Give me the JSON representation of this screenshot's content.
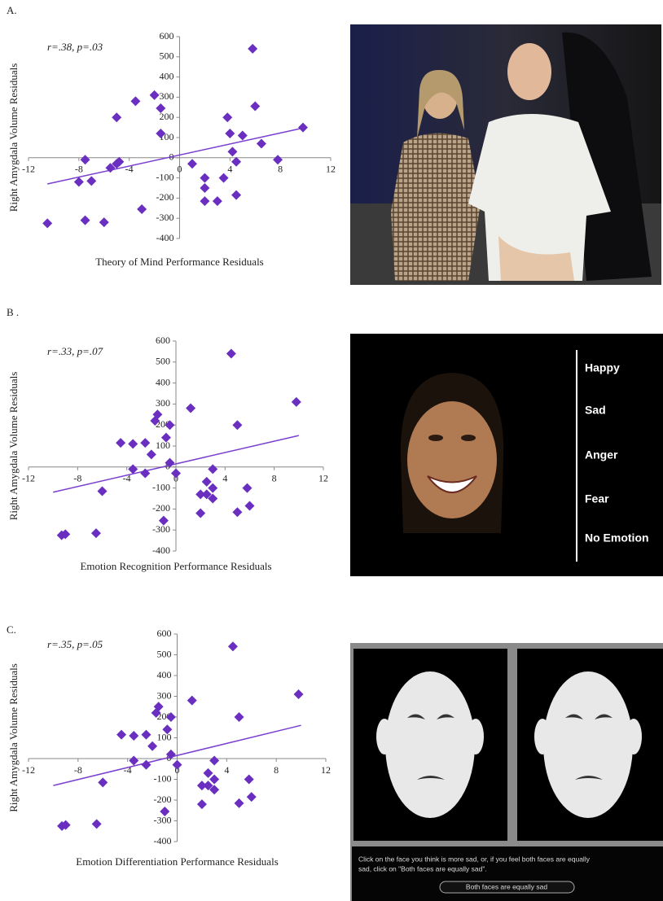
{
  "chart_data": [
    {
      "type": "scatter",
      "annotation": "r=.38, p=.03",
      "xlabel": "Theory of Mind Performance Residuals",
      "ylabel": "Right Amygdala Volume Residuals",
      "color": "#6a2fc0",
      "x": [
        -10.5,
        -7.5,
        -6,
        -7.5,
        -8,
        -7,
        -5.5,
        -5,
        -4.8,
        -5,
        -3.5,
        -2,
        -1.5,
        -1.5,
        -3,
        1,
        2,
        2,
        2,
        3,
        3.5,
        3.8,
        4,
        4.2,
        4.5,
        4.5,
        5,
        5.8,
        6,
        6.5,
        7.8,
        9.8
      ],
      "y": [
        -325,
        -310,
        -320,
        -10,
        -120,
        -115,
        -50,
        -30,
        -20,
        200,
        280,
        310,
        245,
        120,
        -255,
        -30,
        -100,
        -150,
        -215,
        -215,
        -100,
        200,
        120,
        30,
        -20,
        -185,
        110,
        540,
        255,
        70,
        -10,
        150
      ],
      "trendline": {
        "x": [
          -10.5,
          10
        ],
        "y": [
          -130,
          150
        ],
        "color": "#7a3fd0"
      },
      "xlim": [
        -12,
        12
      ],
      "ylim": [
        -400,
        600
      ],
      "xticks": [
        -12,
        -8,
        -4,
        0,
        4,
        8,
        12
      ],
      "yticks": [
        -400,
        -300,
        -200,
        -100,
        0,
        100,
        200,
        300,
        400,
        500,
        600
      ]
    },
    {
      "type": "scatter",
      "annotation": "r=.33, p=.07",
      "xlabel": "Emotion Recognition Performance Residuals",
      "ylabel": "Right Amygdala Volume Residuals",
      "color": "#6a2fc0",
      "x": [
        -9.3,
        -9,
        -6.5,
        -6,
        -4.5,
        -3.5,
        -3.5,
        -2.5,
        -2.5,
        -2,
        -1.5,
        -1.7,
        -0.8,
        -0.5,
        -0.5,
        0,
        -1,
        1.2,
        2,
        2,
        2.5,
        2.5,
        3,
        3,
        3,
        4.5,
        5,
        5,
        5.8,
        6,
        9.8
      ],
      "y": [
        -325,
        -320,
        -315,
        -115,
        115,
        110,
        -10,
        115,
        -30,
        60,
        250,
        220,
        140,
        200,
        20,
        -30,
        -255,
        280,
        -220,
        -130,
        -70,
        -130,
        -100,
        -150,
        -10,
        540,
        200,
        -215,
        -100,
        -185,
        310
      ],
      "trendline": {
        "x": [
          -10,
          10
        ],
        "y": [
          -120,
          150
        ],
        "color": "#7a3fd0"
      },
      "xlim": [
        -12,
        12
      ],
      "ylim": [
        -400,
        600
      ],
      "xticks": [
        -12,
        -8,
        -4,
        0,
        4,
        8,
        12
      ],
      "yticks": [
        -400,
        -300,
        -200,
        -100,
        0,
        100,
        200,
        300,
        400,
        500,
        600
      ]
    },
    {
      "type": "scatter",
      "annotation": "r=.35, p=.05",
      "xlabel": "Emotion Differentiation Performance Residuals",
      "ylabel": "Right Amygdala Volume Residuals",
      "color": "#6a2fc0",
      "x": [
        -9.3,
        -9,
        -6.5,
        -6,
        -4.5,
        -3.5,
        -3.5,
        -2.5,
        -2.5,
        -2,
        -1.5,
        -1.7,
        -0.8,
        -0.5,
        -0.5,
        0,
        -1,
        1.2,
        2,
        2,
        2.5,
        2.5,
        3,
        3,
        3,
        4.5,
        5,
        5,
        5.8,
        6,
        9.8
      ],
      "y": [
        -325,
        -320,
        -315,
        -115,
        115,
        110,
        -10,
        115,
        -30,
        60,
        250,
        220,
        140,
        200,
        20,
        -30,
        -255,
        280,
        -220,
        -130,
        -70,
        -130,
        -100,
        -150,
        -10,
        540,
        200,
        -215,
        -100,
        -185,
        310
      ],
      "trendline": {
        "x": [
          -10,
          10
        ],
        "y": [
          -130,
          160
        ],
        "color": "#7a3fd0"
      },
      "xlim": [
        -12,
        12
      ],
      "ylim": [
        -400,
        600
      ],
      "xticks": [
        -12,
        -8,
        -4,
        0,
        4,
        8,
        12
      ],
      "yticks": [
        -400,
        -300,
        -200,
        -100,
        0,
        100,
        200,
        300,
        400,
        500,
        600
      ]
    }
  ],
  "panels": [
    {
      "label": "A."
    },
    {
      "label": "B ."
    },
    {
      "label": "C."
    }
  ],
  "stimuli": {
    "emotion_labels": [
      "Happy",
      "Sad",
      "Anger",
      "Fear",
      "No Emotion"
    ],
    "instruction": [
      "Click on the face you think is more sad, or, if you feel both faces are equally",
      "sad, click on \"Both faces are equally sad\"."
    ],
    "button": "Both faces are equally sad"
  }
}
